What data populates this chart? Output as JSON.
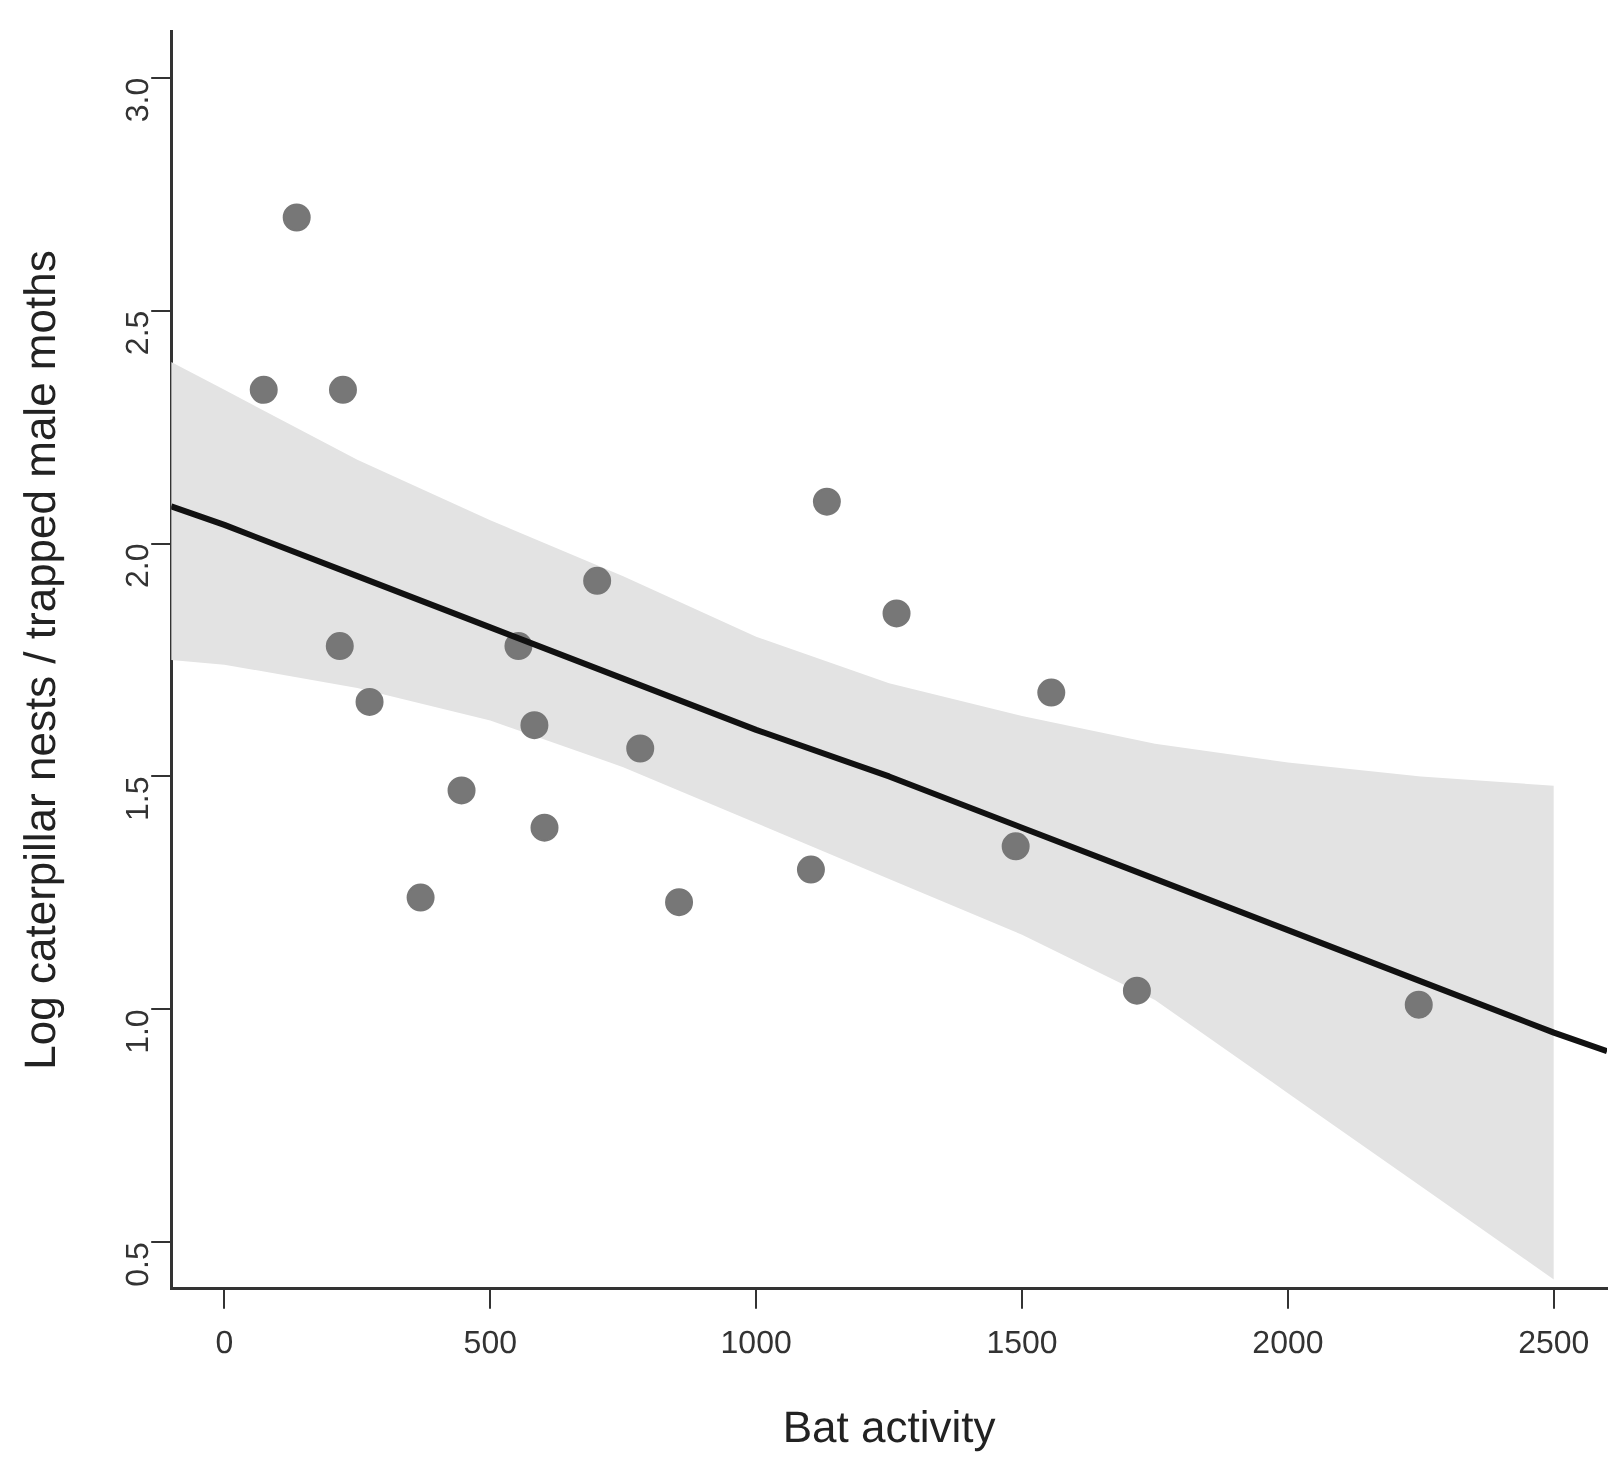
{
  "chart_data": {
    "type": "scatter",
    "xlabel": "Bat activity",
    "ylabel": "Log caterpillar nests / trapped male moths",
    "xlim": [
      -100,
      2600
    ],
    "ylim": [
      0.4,
      3.1
    ],
    "xticks": [
      0,
      500,
      1000,
      1500,
      2000,
      2500
    ],
    "yticks": [
      {
        "value": 0.5,
        "label": "0.5"
      },
      {
        "value": 1,
        "label": "1.0"
      },
      {
        "value": 1.5,
        "label": "1.5"
      },
      {
        "value": 2,
        "label": "2.0"
      },
      {
        "value": 2.5,
        "label": "2.5"
      },
      {
        "value": 3,
        "label": "3.0"
      }
    ],
    "grid": false,
    "series": [
      {
        "type": "line",
        "color": "#111111",
        "marker": "none",
        "x": [
          -100,
          0,
          250,
          500,
          750,
          1000,
          1250,
          1500,
          1750,
          2000,
          2250,
          2500,
          2600
        ],
        "values": [
          2.08,
          2.04,
          1.93,
          1.82,
          1.71,
          1.6,
          1.5,
          1.39,
          1.28,
          1.17,
          1.06,
          0.95,
          0.91
        ],
        "upper": [
          2.39,
          2.33,
          2.18,
          2.05,
          1.93,
          1.8,
          1.7,
          1.63,
          1.57,
          1.53,
          1.5,
          1.48,
          null
        ],
        "lower": [
          1.75,
          1.74,
          1.69,
          1.62,
          1.52,
          1.4,
          1.28,
          1.16,
          1.02,
          0.82,
          0.62,
          0.42,
          null
        ]
      },
      {
        "color": "#777777",
        "marker": "circle",
        "x": [
          136,
          74,
          223,
          1133,
          701,
          217,
          553,
          273,
          583,
          782,
          446,
          602,
          369,
          855,
          1103,
          1264,
          1555,
          1488,
          1716,
          2246
        ],
        "values": [
          2.7,
          2.33,
          2.33,
          2.09,
          1.92,
          1.78,
          1.78,
          1.66,
          1.61,
          1.56,
          1.47,
          1.39,
          1.24,
          1.23,
          1.3,
          1.85,
          1.68,
          1.35,
          1.04,
          1.01
        ]
      }
    ]
  }
}
